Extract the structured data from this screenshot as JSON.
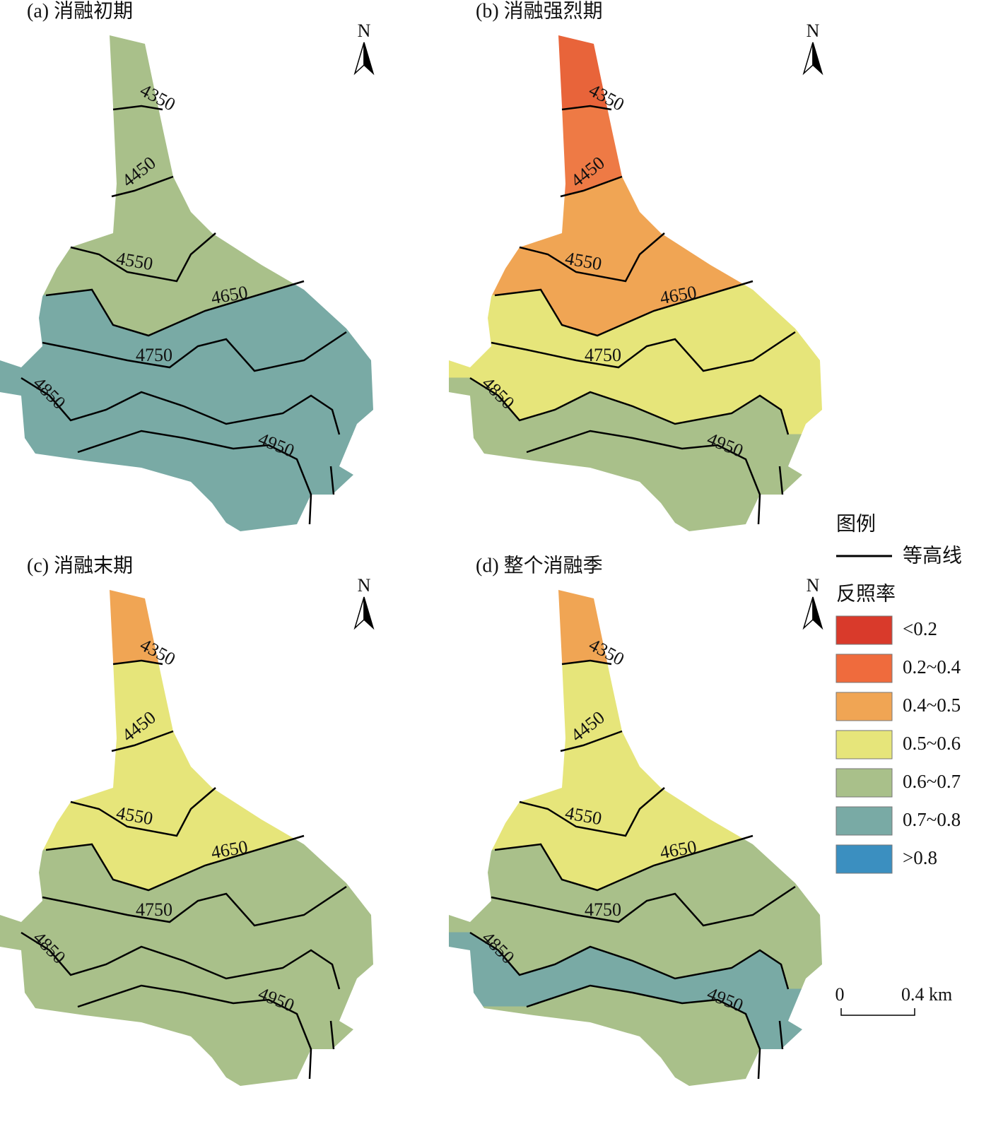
{
  "panels": [
    {
      "title": "(a) 消融初期",
      "zone_colors": [
        "#a9c08a",
        "#a9c08a",
        "#a9c08a",
        "#a9c08a",
        "#79aaa5",
        "#79aaa5",
        "#79aaa5",
        "#79aaa5"
      ]
    },
    {
      "title": "(b) 消融强烈期",
      "zone_colors": [
        "#e8643a",
        "#ee7a45",
        "#f0a554",
        "#f0a554",
        "#e6e57a",
        "#e6e57a",
        "#a9c08a",
        "#a9c08a"
      ]
    },
    {
      "title": "(c) 消融末期",
      "zone_colors": [
        "#f0a554",
        "#e6e57a",
        "#e6e57a",
        "#e6e57a",
        "#a9c08a",
        "#a9c08a",
        "#a9c08a",
        "#a9c08a"
      ]
    },
    {
      "title": "(d) 整个消融季",
      "zone_colors": [
        "#f0a554",
        "#e6e57a",
        "#e6e57a",
        "#e6e57a",
        "#a9c08a",
        "#a9c08a",
        "#79aaa5",
        "#a9c08a"
      ]
    }
  ],
  "contours": [
    "4350",
    "4450",
    "4550",
    "4650",
    "4750",
    "4850",
    "4950"
  ],
  "north_label": "N",
  "legend": {
    "title": "图例",
    "contour_label": "等高线",
    "albedo_title": "反照率",
    "classes": [
      {
        "label": "<0.2",
        "color": "#d93a2b"
      },
      {
        "label": "0.2~0.4",
        "color": "#ef6b3d"
      },
      {
        "label": "0.4~0.5",
        "color": "#f0a554"
      },
      {
        "label": "0.5~0.6",
        "color": "#e6e57a"
      },
      {
        "label": "0.6~0.7",
        "color": "#a9c08a"
      },
      {
        "label": "0.7~0.8",
        "color": "#79aaa5"
      },
      {
        "label": ">0.8",
        "color": "#3b8fc0"
      }
    ]
  },
  "scale_bar": {
    "start": "0",
    "end": "0.4 km"
  }
}
